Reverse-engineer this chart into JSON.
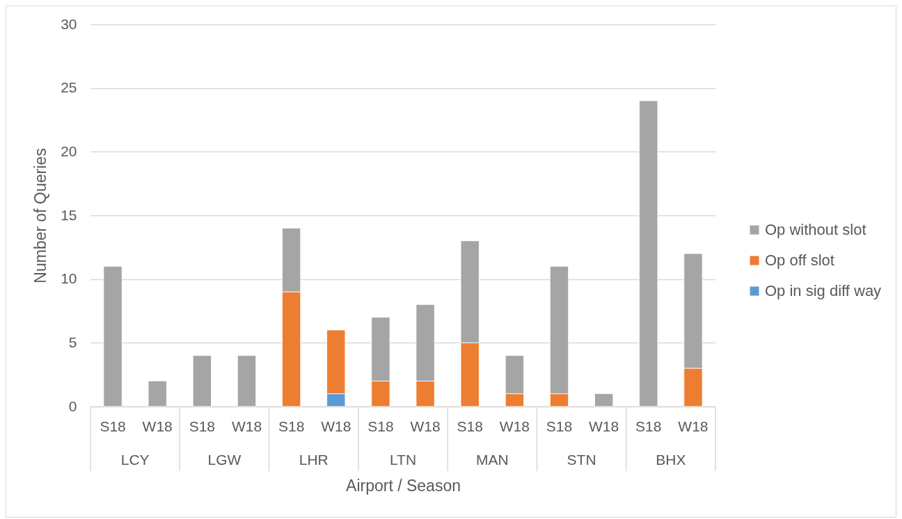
{
  "chart_data": {
    "type": "bar",
    "stacked": true,
    "xlabel": "Airport / Season",
    "ylabel": "Number of Queries",
    "categories": [
      "S18",
      "W18",
      "S18",
      "W18",
      "S18",
      "W18",
      "S18",
      "W18",
      "S18",
      "W18",
      "S18",
      "W18",
      "S18",
      "W18"
    ],
    "annotations": [
      "LCY",
      "LGW",
      "LHR",
      "LTN",
      "MAN",
      "STN",
      "BHX"
    ],
    "series": [
      {
        "name": "Op in sig diff way",
        "color": "#5b9bd5",
        "values": [
          null,
          null,
          null,
          null,
          null,
          1,
          null,
          null,
          null,
          null,
          null,
          null,
          null,
          null
        ]
      },
      {
        "name": "Op off slot",
        "color": "#ed7d31",
        "values": [
          null,
          null,
          null,
          null,
          9,
          5,
          2,
          2,
          5,
          1,
          1,
          null,
          null,
          3
        ]
      },
      {
        "name": "Op without slot",
        "color": "#a5a5a5",
        "values": [
          11,
          2,
          4,
          4,
          5,
          null,
          5,
          6,
          8,
          3,
          10,
          1,
          24,
          9
        ]
      }
    ],
    "ylim": [
      0,
      30
    ],
    "yticks": [
      0,
      5,
      10,
      15,
      20,
      25,
      30
    ],
    "grid": "y",
    "legend": "right"
  }
}
